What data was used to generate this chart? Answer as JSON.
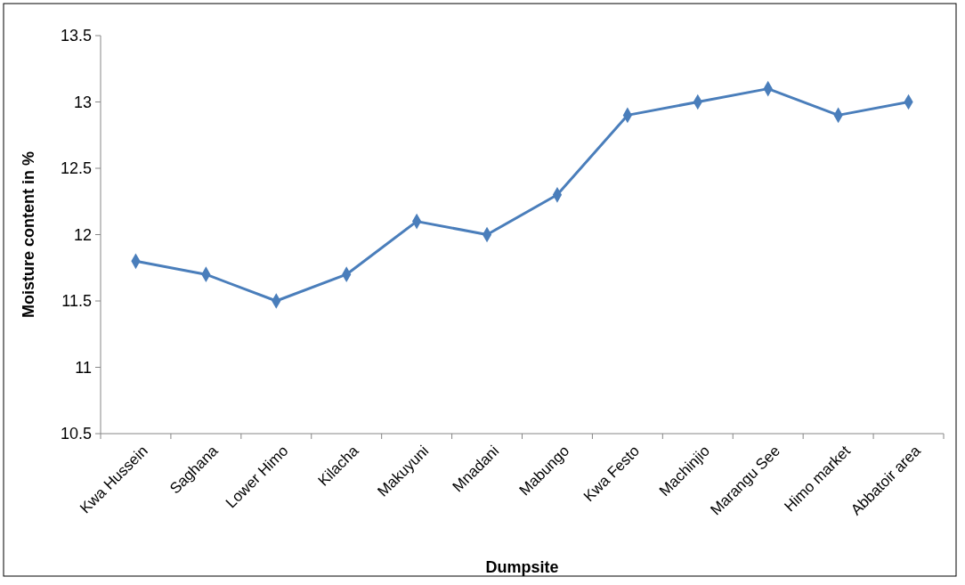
{
  "chart_data": {
    "type": "line",
    "xlabel": "Dumpsite",
    "ylabel": "Moisture content in %",
    "categories": [
      "Kwa Hussein",
      "Saghana",
      "Lower Himo",
      "Kilacha",
      "Makuyuni",
      "Mnadani",
      "Mabungo",
      "Kwa Festo",
      "Machinjio",
      "Marangu See",
      "Himo market",
      "Abbatoir area"
    ],
    "series": [
      {
        "color": "#4a7ebb",
        "values": [
          11.8,
          11.7,
          11.5,
          11.7,
          12.1,
          12.0,
          12.3,
          12.9,
          13.0,
          13.1,
          12.9,
          13.0
        ]
      }
    ],
    "ylim": [
      10.5,
      13.5
    ],
    "yticks": [
      10.5,
      11,
      11.5,
      12,
      12.5,
      13,
      13.5
    ],
    "grid": false,
    "marker": "diamond",
    "line_style": "solid"
  }
}
